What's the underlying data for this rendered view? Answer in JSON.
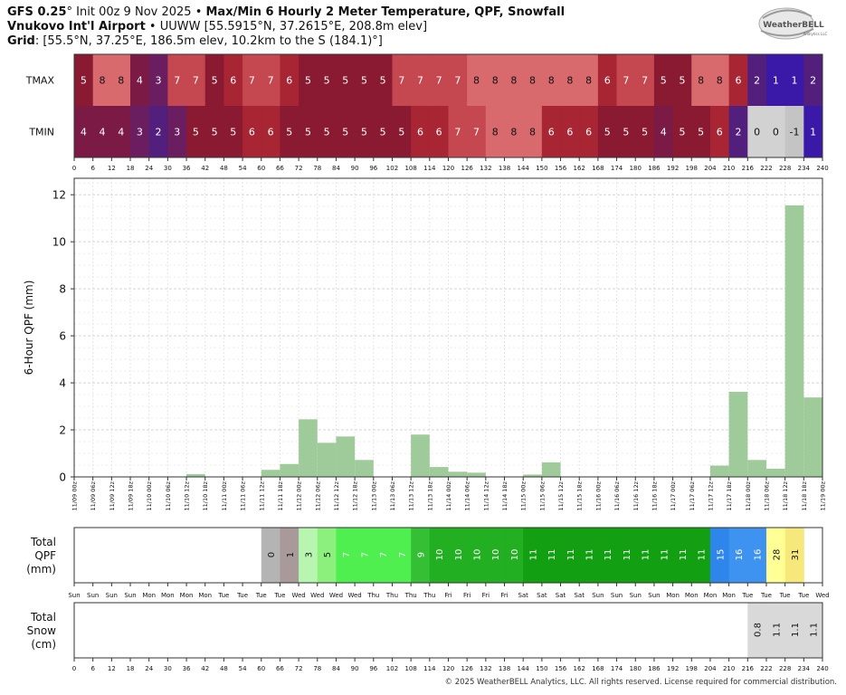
{
  "header": {
    "model": "GFS 0.25",
    "deg": "°",
    "init": " Init 00z 9 Nov 2025",
    "bullet": " • ",
    "product": "Max/Min 6 Hourly 2 Meter Temperature, QPF, Snowfall",
    "station": "Vnukovo Int'l Airport",
    "station_info": " • UUWW [55.5915°N, 37.2615°E, 208.8m elev]",
    "grid_label": "Grid",
    "grid_info": ": [55.5°N, 37.25°E, 186.5m elev, 10.2km to the S (184.1)°]"
  },
  "logo": {
    "text": "WeatherBELL",
    "sub": "Analytics LLC"
  },
  "copyright": "© 2025 WeatherBELL Analytics, LLC. All rights reserved. License required for commercial distribution.",
  "colors": {
    "tmax_tmin_scale": [
      "#3a18a8",
      "#c8c8c8",
      "#8a1230",
      "#b82a3a",
      "#d06070",
      "#e07c80"
    ],
    "qpf_bar": "#9fcb9b",
    "snow_box": "#d9d9d9"
  },
  "chart_data": [
    {
      "type": "heatmap",
      "title": "",
      "rows": [
        "TMAX",
        "TMIN"
      ],
      "x_hours": [
        0,
        6,
        12,
        18,
        24,
        30,
        36,
        42,
        48,
        54,
        60,
        66,
        72,
        78,
        84,
        90,
        96,
        102,
        108,
        114,
        120,
        126,
        132,
        138,
        144,
        150,
        156,
        162,
        168,
        174,
        180,
        186,
        192,
        198,
        204,
        210,
        216,
        222,
        228,
        234,
        240
      ],
      "x_tick_labels": [
        "0",
        "6",
        "12",
        "18",
        "24",
        "30",
        "36",
        "42",
        "48",
        "54",
        "60",
        "66",
        "72",
        "78",
        "84",
        "90",
        "96",
        "102",
        "108",
        "114",
        "120",
        "126",
        "132",
        "138",
        "144",
        "150",
        "156",
        "162",
        "168",
        "174",
        "180",
        "186",
        "192",
        "198",
        "204",
        "210",
        "216",
        "222",
        "228",
        "234",
        "240"
      ],
      "tmax": [
        5,
        8,
        8,
        4,
        3,
        7,
        7,
        5,
        6,
        7,
        7,
        6,
        5,
        5,
        5,
        5,
        5,
        7,
        7,
        7,
        7,
        8,
        8,
        8,
        8,
        8,
        8,
        8,
        6,
        7,
        7,
        5,
        5,
        8,
        8,
        6,
        2,
        1,
        1,
        2
      ],
      "tmin": [
        4,
        4,
        4,
        3,
        2,
        3,
        5,
        5,
        5,
        6,
        6,
        5,
        5,
        5,
        5,
        5,
        5,
        5,
        6,
        6,
        7,
        7,
        8,
        8,
        8,
        6,
        6,
        6,
        5,
        5,
        5,
        4,
        5,
        5,
        6,
        2,
        0,
        0,
        -1,
        1
      ]
    },
    {
      "type": "bar",
      "title": "",
      "ylabel": "6-Hour QPF (mm)",
      "ylim": [
        0,
        12.7
      ],
      "yticks": [
        "0",
        "2",
        "4",
        "6",
        "8",
        "10",
        "12"
      ],
      "grid": true,
      "x_labels": [
        "11/09 00z",
        "11/09 06z",
        "11/09 12z",
        "11/09 18z",
        "11/10 00z",
        "11/10 06z",
        "11/10 12z",
        "11/10 18z",
        "11/11 00z",
        "11/11 06z",
        "11/11 12z",
        "11/11 18z",
        "11/12 00z",
        "11/12 06z",
        "11/12 12z",
        "11/12 18z",
        "11/13 00z",
        "11/13 06z",
        "11/13 12z",
        "11/13 18z",
        "11/14 00z",
        "11/14 06z",
        "11/14 12z",
        "11/14 18z",
        "11/15 00z",
        "11/15 06z",
        "11/15 12z",
        "11/15 18z",
        "11/16 00z",
        "11/16 06z",
        "11/16 12z",
        "11/16 18z",
        "11/17 00z",
        "11/17 06z",
        "11/17 12z",
        "11/17 18z",
        "11/18 00z",
        "11/18 06z",
        "11/18 12z",
        "11/18 18z",
        "11/19 00z"
      ],
      "values": [
        0,
        0,
        0,
        0,
        0,
        0,
        0.12,
        0,
        0,
        0,
        0.3,
        0.55,
        2.45,
        1.45,
        1.72,
        0.72,
        0,
        0.02,
        1.8,
        0.42,
        0.22,
        0.18,
        0,
        0,
        0.1,
        0.62,
        0,
        0,
        0,
        0,
        0,
        0,
        0,
        0,
        0.48,
        3.62,
        0.72,
        0.35,
        11.55,
        3.38
      ]
    },
    {
      "type": "table",
      "title": "",
      "row_label": [
        "Total",
        "QPF",
        "(mm)"
      ],
      "values": [
        0,
        1,
        3,
        5,
        7,
        7,
        7,
        7,
        9,
        10,
        10,
        10,
        10,
        10,
        11,
        11,
        11,
        11,
        11,
        11,
        11,
        11,
        11,
        11,
        15,
        16,
        16,
        28,
        31
      ],
      "start_index": 10,
      "days": [
        "Sun",
        "Sun",
        "Sun",
        "Sun",
        "Mon",
        "Mon",
        "Mon",
        "Mon",
        "Tue",
        "Tue",
        "Tue",
        "Tue",
        "Wed",
        "Wed",
        "Wed",
        "Wed",
        "Thu",
        "Thu",
        "Thu",
        "Thu",
        "Fri",
        "Fri",
        "Fri",
        "Fri",
        "Sat",
        "Sat",
        "Sat",
        "Sat",
        "Sun",
        "Sun",
        "Sun",
        "Sun",
        "Mon",
        "Mon",
        "Mon",
        "Mon",
        "Tue",
        "Tue",
        "Tue",
        "Tue",
        "Wed"
      ]
    },
    {
      "type": "table",
      "title": "",
      "row_label": [
        "Total",
        "Snow",
        "(cm)"
      ],
      "values": [
        0.8,
        1.1,
        1.1,
        1.1
      ],
      "start_index": 36,
      "x_tick_labels": [
        "0",
        "6",
        "12",
        "18",
        "24",
        "30",
        "36",
        "42",
        "48",
        "54",
        "60",
        "66",
        "72",
        "78",
        "84",
        "90",
        "96",
        "102",
        "108",
        "114",
        "120",
        "126",
        "132",
        "138",
        "144",
        "150",
        "156",
        "162",
        "168",
        "174",
        "180",
        "186",
        "192",
        "198",
        "204",
        "210",
        "216",
        "222",
        "228",
        "234",
        "240"
      ]
    }
  ]
}
